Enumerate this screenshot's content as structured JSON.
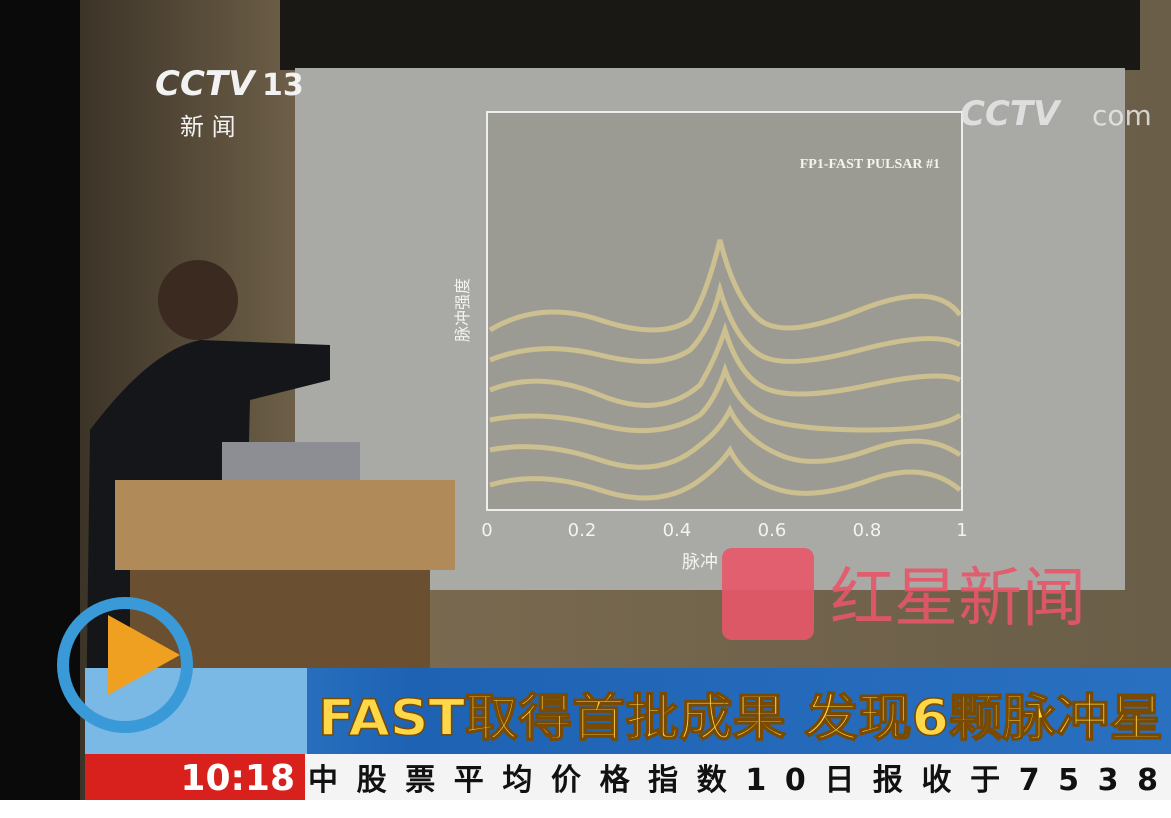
{
  "logo": {
    "brand": "CCTV",
    "channel": "13",
    "channel_name": "新 闻"
  },
  "watermark": {
    "brand": "CCTV",
    "suffix": "com"
  },
  "slide": {
    "title": "FP1-FAST PULSAR #1",
    "y_label": "脉冲强度",
    "x_label": "脉冲",
    "x_ticks": [
      "0",
      "0.2",
      "0.4",
      "0.6",
      "0.8",
      "1"
    ]
  },
  "source_logo": "红星新闻",
  "headline": "FAST取得首批成果 发现6颗脉冲星",
  "ticker": {
    "time": "10:18",
    "text": "中股票平均价格指数10日报收于7538"
  }
}
